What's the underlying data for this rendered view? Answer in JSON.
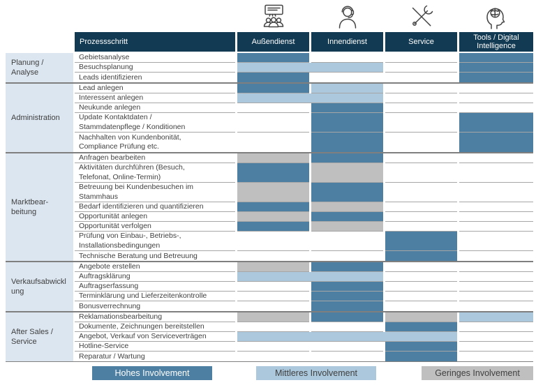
{
  "header": {
    "process_col": "Prozessschritt",
    "columns": [
      {
        "label": "Außendienst",
        "icon": "presentation-team-icon"
      },
      {
        "label": "Innendienst",
        "icon": "headset-agent-icon"
      },
      {
        "label": "Service",
        "icon": "crossed-tools-icon"
      },
      {
        "label": "Tools / Digital Intelligence",
        "icon": "brain-head-icon"
      }
    ]
  },
  "levels": {
    "hoch": "#4d7fa2",
    "mittel": "#abc8dc",
    "gering": "#bfbfbf"
  },
  "groups": [
    {
      "label": "Planung /\nAnalyse",
      "rows": [
        {
          "label": "Gebietsanalyse",
          "lines": 1,
          "cells": [
            "hoch",
            "",
            "",
            "hoch"
          ]
        },
        {
          "label": "Besuchsplanung",
          "lines": 1,
          "cells": [
            "mittel",
            "mittel",
            "",
            "hoch"
          ]
        },
        {
          "label": "Leads identifizieren",
          "lines": 1,
          "cells": [
            "hoch",
            "",
            "",
            "hoch"
          ]
        }
      ]
    },
    {
      "label": "Administration",
      "rows": [
        {
          "label": "Lead anlegen",
          "lines": 1,
          "cells": [
            "hoch",
            "mittel",
            "",
            ""
          ]
        },
        {
          "label": "Interessent anlegen",
          "lines": 1,
          "cells": [
            "mittel",
            "mittel",
            "",
            ""
          ]
        },
        {
          "label": "Neukunde anlegen",
          "lines": 1,
          "cells": [
            "",
            "hoch",
            "",
            ""
          ]
        },
        {
          "label": "Update Kontaktdaten /\nStammdatenpflege / Konditionen",
          "lines": 2,
          "cells": [
            "",
            "hoch",
            "",
            "hoch"
          ]
        },
        {
          "label": "Nachhalten von Kundenbonität,\nCompliance Prüfung etc.",
          "lines": 2,
          "cells": [
            "",
            "hoch",
            "",
            "hoch"
          ]
        }
      ]
    },
    {
      "label": "Marktbear-\nbeitung",
      "rows": [
        {
          "label": "Anfragen bearbeiten",
          "lines": 1,
          "cells": [
            "gering",
            "hoch",
            "",
            ""
          ]
        },
        {
          "label": "Aktivitäten durchführen (Besuch,\nTelefonat, Online-Termin)",
          "lines": 2,
          "cells": [
            "hoch",
            "gering",
            "",
            ""
          ]
        },
        {
          "label": "Betreuung bei Kundenbesuchen im\nStammhaus",
          "lines": 2,
          "cells": [
            "gering",
            "hoch",
            "",
            ""
          ]
        },
        {
          "label": "Bedarf identifizieren und quantifizieren",
          "lines": 1,
          "cells": [
            "hoch",
            "gering",
            "",
            ""
          ]
        },
        {
          "label": "Opportunität anlegen",
          "lines": 1,
          "cells": [
            "gering",
            "hoch",
            "",
            ""
          ]
        },
        {
          "label": "Opportunität verfolgen",
          "lines": 1,
          "cells": [
            "hoch",
            "gering",
            "",
            ""
          ]
        },
        {
          "label": "Prüfung von Einbau-, Betriebs-,\nInstallationsbedingungen",
          "lines": 2,
          "cells": [
            "",
            "",
            "hoch",
            ""
          ]
        },
        {
          "label": "Technische Beratung und Betreuung",
          "lines": 1,
          "cells": [
            "",
            "",
            "hoch",
            ""
          ]
        }
      ]
    },
    {
      "label": "Verkaufsabwickl\nung",
      "rows": [
        {
          "label": "Angebote erstellen",
          "lines": 1,
          "cells": [
            "gering",
            "hoch",
            "",
            ""
          ]
        },
        {
          "label": "Auftragsklärung",
          "lines": 1,
          "cells": [
            "mittel",
            "mittel",
            "",
            ""
          ]
        },
        {
          "label": "Auftragserfassung",
          "lines": 1,
          "cells": [
            "",
            "hoch",
            "",
            ""
          ]
        },
        {
          "label": "Terminklärung und Lieferzeitenkontrolle",
          "lines": 1,
          "cells": [
            "",
            "hoch",
            "",
            ""
          ]
        },
        {
          "label": "Bonusverrechnung",
          "lines": 1,
          "cells": [
            "",
            "hoch",
            "",
            ""
          ]
        }
      ]
    },
    {
      "label": "After Sales /\nService",
      "rows": [
        {
          "label": "Reklamationsbearbeitung",
          "lines": 1,
          "cells": [
            "gering",
            "hoch",
            "gering",
            "mittel"
          ]
        },
        {
          "label": "Dokumente, Zeichnungen bereitstellen",
          "lines": 1,
          "cells": [
            "",
            "",
            "hoch",
            ""
          ]
        },
        {
          "label": "Angebot, Verkauf von Serviceverträgen",
          "lines": 1,
          "cells": [
            "mittel",
            "mittel",
            "mittel",
            ""
          ]
        },
        {
          "label": "Hotline-Service",
          "lines": 1,
          "cells": [
            "",
            "",
            "hoch",
            ""
          ]
        },
        {
          "label": "Reparatur / Wartung",
          "lines": 1,
          "cells": [
            "",
            "",
            "hoch",
            ""
          ]
        }
      ]
    }
  ],
  "legend": {
    "items": [
      {
        "label": "Hohes Involvement",
        "level": "hoch",
        "color": "#4d7fa2"
      },
      {
        "label": "Mittleres Involvement",
        "level": "mittel",
        "color": "#abc8dc"
      },
      {
        "label": "Geringes Involvement",
        "level": "gering",
        "color": "#bfbfbf"
      }
    ]
  }
}
